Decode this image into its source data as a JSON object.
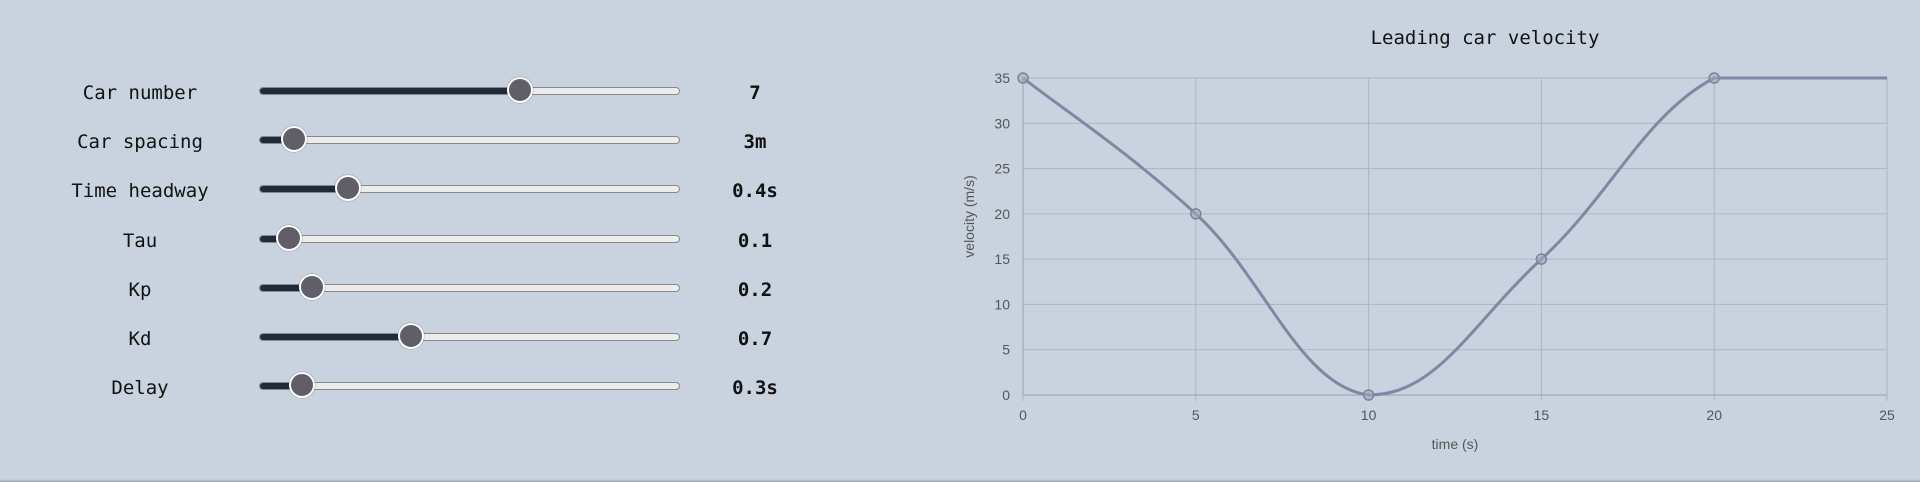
{
  "sliders": [
    {
      "label": "Car number",
      "value": "7",
      "fraction": 0.62
    },
    {
      "label": "Car spacing",
      "value": "3m",
      "fraction": 0.08
    },
    {
      "label": "Time headway",
      "value": "0.4s",
      "fraction": 0.21
    },
    {
      "label": "Tau",
      "value": "0.1",
      "fraction": 0.07
    },
    {
      "label": "Kp",
      "value": "0.2",
      "fraction": 0.125
    },
    {
      "label": "Kd",
      "value": "0.7",
      "fraction": 0.36
    },
    {
      "label": "Delay",
      "value": "0.3s",
      "fraction": 0.1
    }
  ],
  "colors": {
    "background": "#c9d3df",
    "slider_fill": "#1f2a3a",
    "thumb": "#5f5e69",
    "line": "#7a8aa5"
  },
  "chart_data": {
    "type": "line",
    "title": "Leading car velocity",
    "xlabel": "time (s)",
    "ylabel": "velocity (m/s)",
    "xlim": [
      0,
      25
    ],
    "ylim": [
      0,
      35
    ],
    "x_ticks": [
      0,
      5,
      10,
      15,
      20,
      25
    ],
    "y_ticks": [
      0,
      5,
      10,
      15,
      20,
      25,
      30,
      35
    ],
    "grid": true,
    "points": [
      {
        "x": 0,
        "y": 35
      },
      {
        "x": 5,
        "y": 20
      },
      {
        "x": 10,
        "y": 0
      },
      {
        "x": 15,
        "y": 15
      },
      {
        "x": 20,
        "y": 35
      },
      {
        "x": 25,
        "y": 35
      }
    ],
    "marked_points": [
      0,
      1,
      2,
      3,
      4
    ]
  }
}
